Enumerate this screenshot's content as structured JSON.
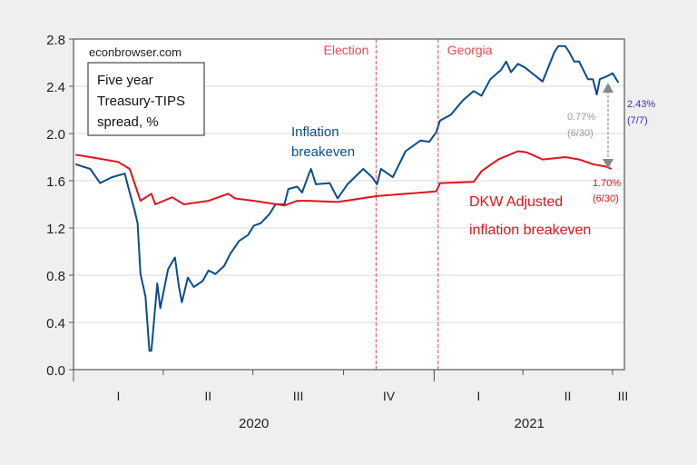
{
  "chart_data": {
    "type": "line",
    "title": "",
    "watermark": "econbrowser.com",
    "legend_box": [
      "Five year",
      "Treasury-TIPS",
      "spread, %"
    ],
    "ylim": [
      0.0,
      2.8
    ],
    "yticks": [
      "0.0",
      "0.4",
      "0.8",
      "1.2",
      "1.6",
      "2.0",
      "2.4",
      "2.8"
    ],
    "xlim": [
      "2020-01-01",
      "2021-07-13"
    ],
    "quarter_ticks": [
      "2020-01-01",
      "2020-04-01",
      "2020-07-01",
      "2020-10-01",
      "2021-01-01",
      "2021-04-01",
      "2021-07-01"
    ],
    "quarter_labels": [
      "I",
      "II",
      "III",
      "IV",
      "I",
      "II",
      "III"
    ],
    "year_labels": [
      "2020",
      "2021"
    ],
    "grid": "horizontal",
    "colors": {
      "inflation_breakeven": "#0b4c8e",
      "dkw": "#e3121b",
      "events": "#f0474d",
      "annot_blue": "#3a2fbf",
      "annot_gray": "#9a9a9a"
    },
    "events": [
      {
        "label": "Election",
        "date": "2020-11-03"
      },
      {
        "label": "Georgia",
        "date": "2021-01-05"
      }
    ],
    "series": [
      {
        "name": "Inflation breakeven",
        "label_lines": [
          "Inflation",
          "breakeven"
        ],
        "points": [
          [
            "2020-01-03",
            1.74
          ],
          [
            "2020-01-18",
            1.7
          ],
          [
            "2020-01-28",
            1.58
          ],
          [
            "2020-02-09",
            1.63
          ],
          [
            "2020-02-22",
            1.66
          ],
          [
            "2020-02-27",
            1.5
          ],
          [
            "2020-03-03",
            1.35
          ],
          [
            "2020-03-06",
            1.24
          ],
          [
            "2020-03-09",
            0.81
          ],
          [
            "2020-03-14",
            0.62
          ],
          [
            "2020-03-18",
            0.16
          ],
          [
            "2020-03-20",
            0.16
          ],
          [
            "2020-03-26",
            0.73
          ],
          [
            "2020-03-29",
            0.52
          ],
          [
            "2020-04-06",
            0.85
          ],
          [
            "2020-04-10",
            0.91
          ],
          [
            "2020-04-13",
            0.95
          ],
          [
            "2020-04-17",
            0.7
          ],
          [
            "2020-04-20",
            0.57
          ],
          [
            "2020-04-26",
            0.78
          ],
          [
            "2020-05-02",
            0.7
          ],
          [
            "2020-05-11",
            0.75
          ],
          [
            "2020-05-17",
            0.84
          ],
          [
            "2020-05-24",
            0.81
          ],
          [
            "2020-06-02",
            0.88
          ],
          [
            "2020-06-08",
            0.98
          ],
          [
            "2020-06-17",
            1.09
          ],
          [
            "2020-06-26",
            1.14
          ],
          [
            "2020-07-02",
            1.22
          ],
          [
            "2020-07-09",
            1.24
          ],
          [
            "2020-07-18",
            1.32
          ],
          [
            "2020-07-24",
            1.4
          ],
          [
            "2020-08-02",
            1.4
          ],
          [
            "2020-08-06",
            1.53
          ],
          [
            "2020-08-15",
            1.55
          ],
          [
            "2020-08-20",
            1.5
          ],
          [
            "2020-08-27",
            1.66
          ],
          [
            "2020-08-29",
            1.7
          ],
          [
            "2020-09-03",
            1.57
          ],
          [
            "2020-09-17",
            1.58
          ],
          [
            "2020-09-25",
            1.45
          ],
          [
            "2020-10-05",
            1.57
          ],
          [
            "2020-10-21",
            1.7
          ],
          [
            "2020-10-30",
            1.63
          ],
          [
            "2020-11-04",
            1.57
          ],
          [
            "2020-11-08",
            1.7
          ],
          [
            "2020-11-20",
            1.63
          ],
          [
            "2020-12-03",
            1.85
          ],
          [
            "2020-12-18",
            1.94
          ],
          [
            "2020-12-27",
            1.93
          ],
          [
            "2021-01-03",
            2.01
          ],
          [
            "2021-01-07",
            2.11
          ],
          [
            "2021-01-18",
            2.16
          ],
          [
            "2021-01-30",
            2.28
          ],
          [
            "2021-02-10",
            2.36
          ],
          [
            "2021-02-18",
            2.32
          ],
          [
            "2021-02-27",
            2.46
          ],
          [
            "2021-03-10",
            2.54
          ],
          [
            "2021-03-15",
            2.61
          ],
          [
            "2021-03-20",
            2.52
          ],
          [
            "2021-03-27",
            2.59
          ],
          [
            "2021-04-03",
            2.56
          ],
          [
            "2021-04-21",
            2.44
          ],
          [
            "2021-05-03",
            2.69
          ],
          [
            "2021-05-07",
            2.74
          ],
          [
            "2021-05-14",
            2.74
          ],
          [
            "2021-05-18",
            2.69
          ],
          [
            "2021-05-23",
            2.61
          ],
          [
            "2021-05-28",
            2.61
          ],
          [
            "2021-06-06",
            2.46
          ],
          [
            "2021-06-11",
            2.46
          ],
          [
            "2021-06-15",
            2.33
          ],
          [
            "2021-06-18",
            2.46
          ],
          [
            "2021-06-24",
            2.48
          ],
          [
            "2021-07-01",
            2.51
          ],
          [
            "2021-07-07",
            2.43
          ]
        ]
      },
      {
        "name": "DKW Adjusted inflation breakeven",
        "label_lines": [
          "DKW Adjusted",
          "inflation breakeven"
        ],
        "points": [
          [
            "2020-01-03",
            1.82
          ],
          [
            "2020-01-18",
            1.8
          ],
          [
            "2020-02-15",
            1.76
          ],
          [
            "2020-02-27",
            1.7
          ],
          [
            "2020-03-09",
            1.43
          ],
          [
            "2020-03-20",
            1.49
          ],
          [
            "2020-03-24",
            1.4
          ],
          [
            "2020-04-10",
            1.46
          ],
          [
            "2020-04-22",
            1.4
          ],
          [
            "2020-05-17",
            1.43
          ],
          [
            "2020-06-06",
            1.49
          ],
          [
            "2020-06-13",
            1.45
          ],
          [
            "2020-07-02",
            1.43
          ],
          [
            "2020-08-02",
            1.39
          ],
          [
            "2020-08-15",
            1.43
          ],
          [
            "2020-08-27",
            1.43
          ],
          [
            "2020-09-25",
            1.42
          ],
          [
            "2020-11-04",
            1.47
          ],
          [
            "2021-01-03",
            1.51
          ],
          [
            "2021-01-07",
            1.58
          ],
          [
            "2021-02-10",
            1.59
          ],
          [
            "2021-02-18",
            1.68
          ],
          [
            "2021-03-07",
            1.78
          ],
          [
            "2021-03-27",
            1.85
          ],
          [
            "2021-04-05",
            1.84
          ],
          [
            "2021-04-21",
            1.78
          ],
          [
            "2021-05-14",
            1.8
          ],
          [
            "2021-05-28",
            1.78
          ],
          [
            "2021-06-11",
            1.74
          ],
          [
            "2021-06-24",
            1.72
          ],
          [
            "2021-06-30",
            1.7
          ]
        ]
      }
    ],
    "annotations": {
      "blue_last": {
        "value": "2.43%",
        "date": "(7/7)"
      },
      "spread": {
        "value": "0.77%",
        "date": "(6/30)"
      },
      "red_last": {
        "value": "1.70%",
        "date": "(6/30)"
      }
    }
  }
}
